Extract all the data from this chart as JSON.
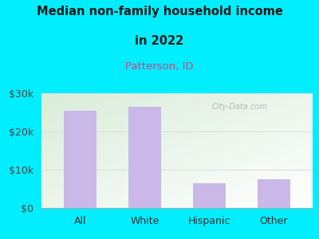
{
  "categories": [
    "All",
    "White",
    "Hispanic",
    "Other"
  ],
  "values": [
    25500,
    26500,
    6500,
    7500
  ],
  "bar_color": "#c9b8e8",
  "title_line1": "Median non-family household income",
  "title_line2": "in 2022",
  "subtitle": "Patterson, ID",
  "subtitle_color": "#cc4488",
  "title_color": "#1a1a1a",
  "background_color": "#00eeff",
  "plot_bg_topleft": "#d8eeda",
  "plot_bg_right": "#f0f0f0",
  "ylabel_color": "#444444",
  "xlabel_color": "#333333",
  "ylim": [
    0,
    30000
  ],
  "yticks": [
    0,
    10000,
    20000,
    30000
  ],
  "ytick_labels": [
    "$0",
    "$10k",
    "$20k",
    "$30k"
  ],
  "watermark": "City-Data.com",
  "grid_color": "#dddddd",
  "bar_width": 0.5
}
